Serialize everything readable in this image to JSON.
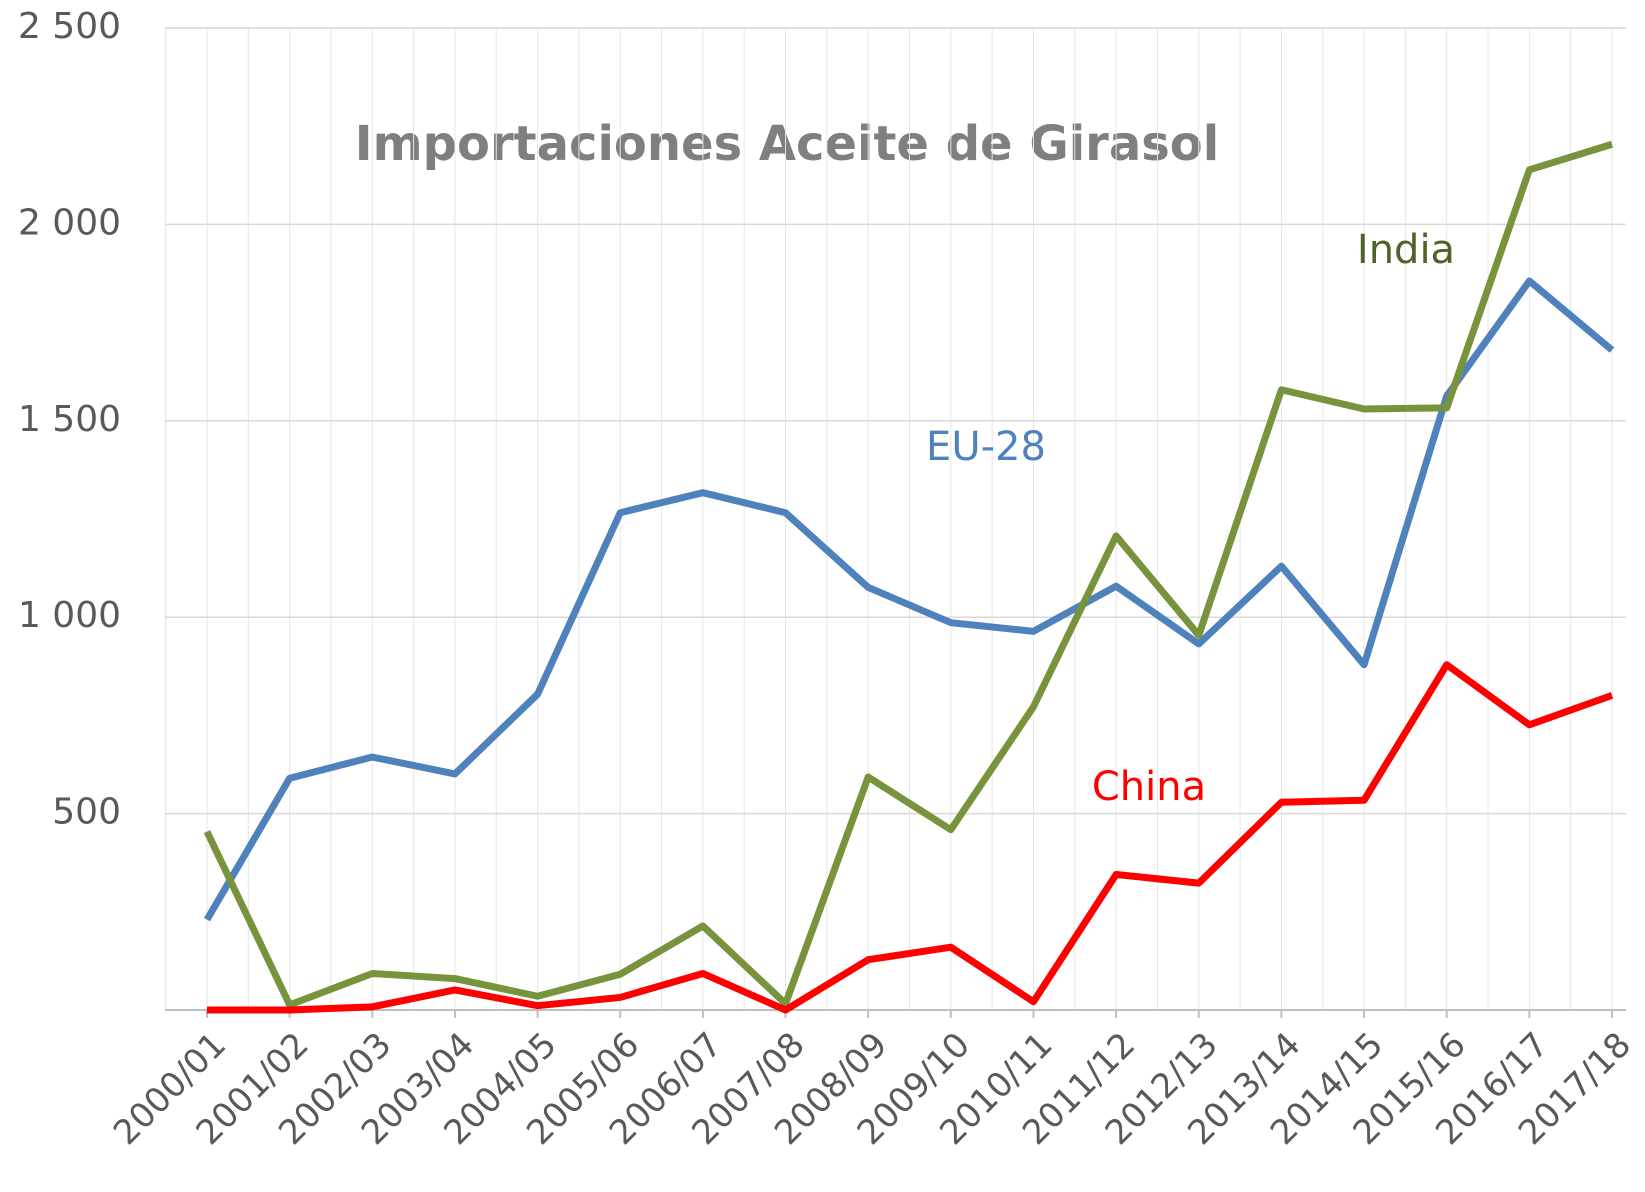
{
  "chart_data": {
    "type": "line",
    "title": "Importaciones Aceite de Girasol",
    "categories": [
      "2000/01",
      "2001/02",
      "2002/03",
      "2003/04",
      "2004/05",
      "2005/06",
      "2006/07",
      "2007/08",
      "2008/09",
      "2009/10",
      "2010/11",
      "2011/12",
      "2012/13",
      "2013/14",
      "2014/15",
      "2015/16",
      "2016/17",
      "2017/18"
    ],
    "series": [
      {
        "name": "EU-28",
        "color": "#4f81bd",
        "values": [
          230,
          590,
          644,
          601,
          804,
          1266,
          1317,
          1266,
          1076,
          986,
          964,
          1079,
          932,
          1130,
          879,
          1563,
          1856,
          1680
        ]
      },
      {
        "name": "India",
        "color": "#77933c",
        "values": [
          454,
          13,
          93,
          80,
          35,
          91,
          214,
          16,
          593,
          459,
          772,
          1207,
          954,
          1579,
          1530,
          1533,
          2139,
          2204
        ]
      },
      {
        "name": "China",
        "color": "#ff0000",
        "values": [
          0,
          0,
          8,
          51,
          11,
          32,
          93,
          0,
          128,
          160,
          21,
          345,
          323,
          529,
          534,
          879,
          726,
          801
        ]
      }
    ],
    "ylim": [
      0,
      2500
    ],
    "yticks": [
      {
        "value": 500,
        "label": "500"
      },
      {
        "value": 1000,
        "label": "1 000"
      },
      {
        "value": 1500,
        "label": "1 500"
      },
      {
        "value": 2000,
        "label": "2 000"
      },
      {
        "value": 2500,
        "label": "2 500"
      }
    ],
    "grid": true
  }
}
